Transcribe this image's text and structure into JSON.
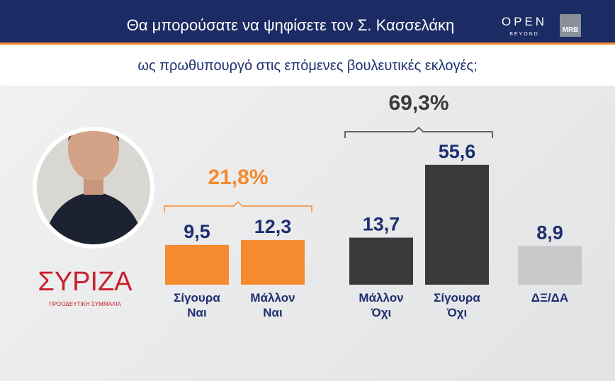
{
  "header": {
    "title": "Θα μπορούσατε να ψηφίσετε τον Σ. Κασσελάκη",
    "brand": "OPEN",
    "brand_sub": "BEYOND",
    "pollster": "MRB"
  },
  "party": {
    "name": "ΣΥΡΙΖΑ",
    "subtitle": "ΠΡΟΟΔΕΥΤΙΚΗ ΣΥΜΜΑΧΙΑ"
  },
  "chart_data": {
    "type": "bar",
    "subtitle": "ως πρωθυπουργό στις επόμενες βουλευτικές εκλογές;",
    "categories": [
      "Σίγουρα Ναι",
      "Μάλλον Ναι",
      "Μάλλον Όχι",
      "Σίγουρα Όχι",
      "ΔΞ/ΔΑ"
    ],
    "values": [
      9.5,
      12.3,
      13.7,
      55.6,
      8.9
    ],
    "value_labels": [
      "9,5",
      "12,3",
      "13,7",
      "55,6",
      "8,9"
    ],
    "colors": [
      "#f58a2f",
      "#f58a2f",
      "#3a3a3a",
      "#3a3a3a",
      "#c9c9c9"
    ],
    "ylim": [
      -13.4,
      60
    ],
    "annotations": [
      {
        "text": "21,8%",
        "color": "#f58a2f"
      },
      {
        "text": "69,3%",
        "color": "#3a3a3a"
      }
    ]
  }
}
